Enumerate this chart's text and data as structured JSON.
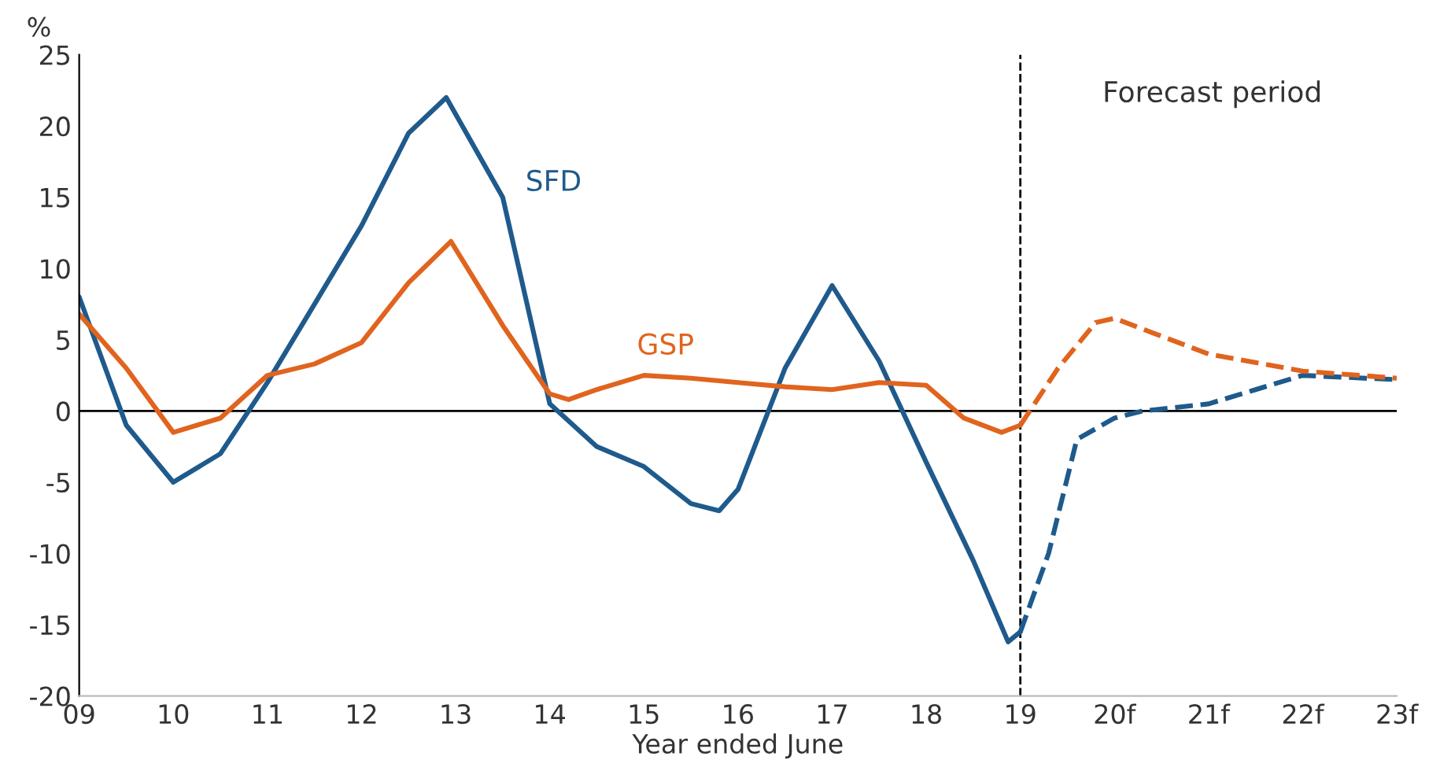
{
  "chart_data": {
    "type": "line",
    "xlabel": "Year ended June",
    "ylabel": "%",
    "xlim": [
      9,
      23
    ],
    "ylim": [
      -20,
      25
    ],
    "xticks": [
      {
        "value": 9,
        "label": "09"
      },
      10,
      11,
      12,
      13,
      14,
      15,
      16,
      17,
      18,
      19,
      {
        "value": 20,
        "label": "20f"
      },
      {
        "value": 21,
        "label": "21f"
      },
      {
        "value": 22,
        "label": "22f"
      },
      {
        "value": 23,
        "label": "23f"
      }
    ],
    "yticks": [
      -20,
      -15,
      -10,
      -5,
      0,
      5,
      10,
      15,
      20,
      25
    ],
    "series": [
      {
        "name": "SFD",
        "color": "#1f5a8c",
        "line_style": "solid",
        "x": [
          9,
          9.5,
          10,
          10.5,
          11,
          11.5,
          12,
          12.5,
          12.9,
          13.5,
          14,
          14.5,
          15,
          15.5,
          15.8,
          16,
          16.5,
          17,
          17.5,
          18,
          18.5,
          18.87,
          19
        ],
        "values": [
          8,
          -1,
          -5,
          -3,
          2,
          7.5,
          13,
          19.5,
          22,
          15,
          0.5,
          -2.5,
          -3.9,
          -6.5,
          -7,
          -5.5,
          3,
          8.8,
          3.5,
          -3.6,
          -10.5,
          -16.2,
          -15.5
        ]
      },
      {
        "name": "GSP",
        "color": "#e0641e",
        "line_style": "solid",
        "x": [
          9,
          9.5,
          10,
          10.5,
          11,
          11.5,
          12,
          12.5,
          12.95,
          13.5,
          14,
          14.2,
          14.5,
          15,
          15.5,
          16,
          16.5,
          17,
          17.5,
          18,
          18.4,
          18.8,
          19
        ],
        "values": [
          6.8,
          3,
          -1.5,
          -0.5,
          2.5,
          3.3,
          4.8,
          9,
          11.9,
          6,
          1.2,
          0.8,
          1.5,
          2.5,
          2.3,
          2,
          1.7,
          1.5,
          2,
          1.8,
          -0.5,
          -1.5,
          -1
        ]
      },
      {
        "color": "#1f5a8c",
        "line_style": "dashed",
        "x": [
          19,
          19.3,
          19.6,
          20,
          20.3,
          21,
          21.5,
          22,
          23
        ],
        "values": [
          -15.5,
          -10,
          -2,
          -0.5,
          0,
          0.5,
          1.5,
          2.5,
          2.2
        ]
      },
      {
        "color": "#e0641e",
        "line_style": "dashed",
        "x": [
          19,
          19.4,
          19.8,
          20,
          20.4,
          21,
          22,
          23
        ],
        "values": [
          -1,
          3,
          6.2,
          6.5,
          5.5,
          4,
          2.8,
          2.3
        ]
      }
    ],
    "ref_lines": [
      {
        "axis": "y",
        "value": 0,
        "color": "#000000",
        "line_style": "solid"
      },
      {
        "axis": "x",
        "value": 19,
        "color": "#000000",
        "line_style": "dashed"
      }
    ],
    "annotations": [
      "Forecast period"
    ]
  }
}
